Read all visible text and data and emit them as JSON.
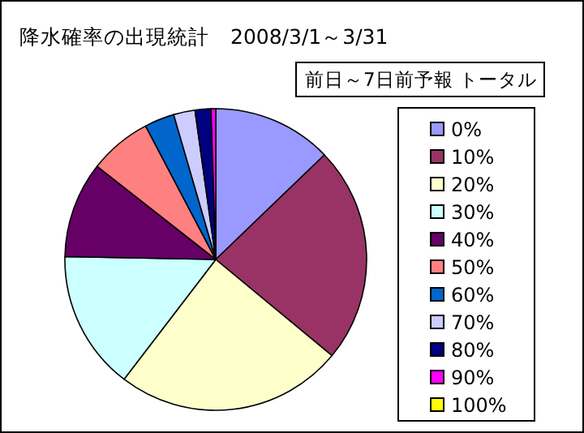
{
  "chart_data": {
    "type": "pie",
    "title": "降水確率の出現統計　2008/3/1～3/31",
    "subtitle": "前日～7日前予報 トータル",
    "legend": "right",
    "categories": [
      "0%",
      "10%",
      "20%",
      "30%",
      "40%",
      "50%",
      "60%",
      "70%",
      "80%",
      "90%",
      "100%"
    ],
    "values": [
      12.8,
      23.2,
      24.4,
      14.9,
      10.3,
      6.7,
      3.2,
      2.3,
      1.7,
      0.5,
      0
    ],
    "colors": [
      "#9999ff",
      "#993366",
      "#ffffcc",
      "#ccffff",
      "#660066",
      "#ff8080",
      "#0066cc",
      "#ccccff",
      "#000080",
      "#ff00ff",
      "#ffff00"
    ]
  }
}
